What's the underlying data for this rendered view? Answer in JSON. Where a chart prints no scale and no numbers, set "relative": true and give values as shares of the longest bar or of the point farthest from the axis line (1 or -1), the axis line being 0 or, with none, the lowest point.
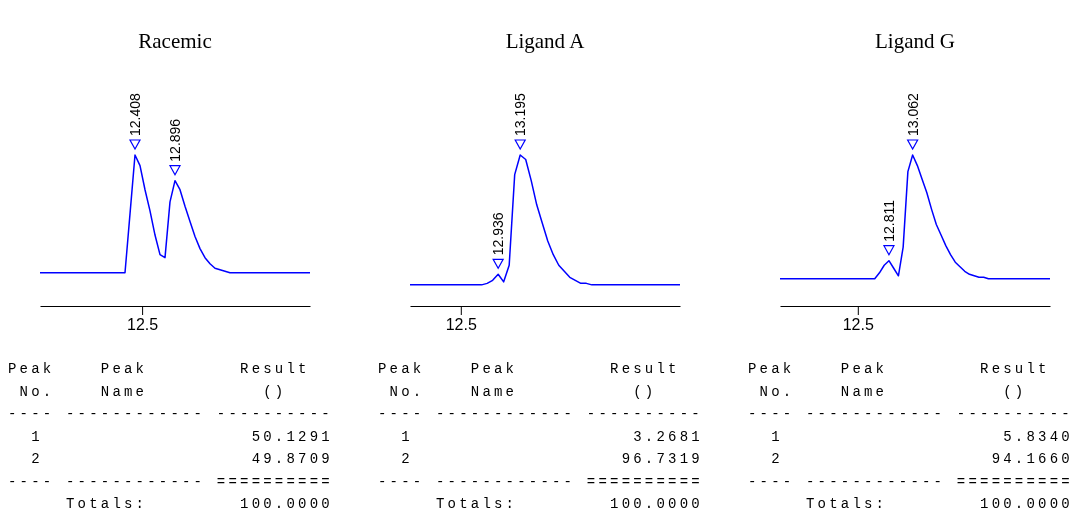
{
  "chart_data": [
    {
      "type": "line",
      "title": "Racemic",
      "relative": true,
      "categories": [
        null,
        null,
        null,
        null,
        null,
        null,
        null,
        null,
        null,
        null,
        null,
        null,
        null,
        null,
        null,
        null,
        null,
        null,
        null,
        null,
        null,
        null,
        null,
        null,
        null,
        null,
        null,
        null,
        null,
        null,
        null,
        null,
        null,
        null,
        null,
        null,
        null,
        null,
        null,
        null,
        null,
        null,
        null,
        null,
        null,
        null,
        null,
        null,
        null,
        null,
        null,
        null,
        null,
        null,
        null
      ],
      "series": [
        {
          "color": "#0000ff",
          "values": [
            0.22,
            0.22,
            0.22,
            0.22,
            0.22,
            0.22,
            0.22,
            0.22,
            0.22,
            0.22,
            0.22,
            0.22,
            0.22,
            0.22,
            0.22,
            0.22,
            0.22,
            0.22,
            0.61,
            1,
            0.93,
            0.77,
            0.63,
            0.47,
            0.34,
            0.32,
            0.69,
            0.83,
            0.77,
            0.66,
            0.56,
            0.46,
            0.38,
            0.32,
            0.28,
            0.25,
            0.24,
            0.23,
            0.22,
            0.22,
            0.22,
            0.22,
            0.22,
            0.22,
            0.22,
            0.22,
            0.22,
            0.22,
            0.22,
            0.22,
            0.22,
            0.22,
            0.22,
            0.22,
            0.22
          ]
        }
      ],
      "annotations": [
        {
          "text": "12.408",
          "y": 1
        },
        {
          "text": "12.896",
          "y": 0.83
        },
        "12.5",
        "Peak    Peak        Result",
        " No.    Name          ()",
        "---- ------------ ----------",
        "  1                  50.1291",
        "  2                  49.8709",
        "---- ------------ ==========",
        "     Totals:        100.0000"
      ]
    },
    {
      "type": "line",
      "title": "Ligand A",
      "relative": true,
      "categories": [
        null,
        null,
        null,
        null,
        null,
        null,
        null,
        null,
        null,
        null,
        null,
        null,
        null,
        null,
        null,
        null,
        null,
        null,
        null,
        null,
        null,
        null,
        null,
        null,
        null,
        null,
        null,
        null,
        null,
        null,
        null,
        null,
        null,
        null,
        null,
        null,
        null,
        null,
        null,
        null,
        null,
        null,
        null,
        null,
        null,
        null,
        null,
        null,
        null,
        null
      ],
      "series": [
        {
          "color": "#0000ff",
          "values": [
            0.14,
            0.14,
            0.14,
            0.14,
            0.14,
            0.14,
            0.14,
            0.14,
            0.14,
            0.14,
            0.14,
            0.14,
            0.14,
            0.14,
            0.15,
            0.17,
            0.21,
            0.16,
            0.27,
            0.87,
            1,
            0.97,
            0.83,
            0.67,
            0.55,
            0.43,
            0.34,
            0.27,
            0.23,
            0.19,
            0.17,
            0.15,
            0.15,
            0.14,
            0.14,
            0.14,
            0.14,
            0.14,
            0.14,
            0.14,
            0.14,
            0.14,
            0.14,
            0.14,
            0.14,
            0.14,
            0.14,
            0.14,
            0.14,
            0.14
          ]
        }
      ],
      "annotations": [
        {
          "text": "12.936",
          "y": 0.21
        },
        {
          "text": "13.195",
          "y": 1
        },
        "12.5",
        "Peak    Peak        Result",
        " No.    Name          ()",
        "---- ------------ ----------",
        "  1                   3.2681",
        "  2                  96.7319",
        "---- ------------ ==========",
        "     Totals:        100.0000"
      ]
    },
    {
      "type": "line",
      "title": "Ligand G",
      "relative": true,
      "categories": [
        null,
        null,
        null,
        null,
        null,
        null,
        null,
        null,
        null,
        null,
        null,
        null,
        null,
        null,
        null,
        null,
        null,
        null,
        null,
        null,
        null,
        null,
        null,
        null,
        null,
        null,
        null,
        null,
        null,
        null,
        null,
        null,
        null,
        null,
        null,
        null,
        null,
        null,
        null,
        null,
        null,
        null,
        null,
        null,
        null,
        null,
        null,
        null,
        null,
        null,
        null,
        null,
        null,
        null,
        null,
        null,
        null,
        null
      ],
      "series": [
        {
          "color": "#0000ff",
          "values": [
            0.18,
            0.18,
            0.18,
            0.18,
            0.18,
            0.18,
            0.18,
            0.18,
            0.18,
            0.18,
            0.18,
            0.18,
            0.18,
            0.18,
            0.18,
            0.18,
            0.18,
            0.18,
            0.18,
            0.18,
            0.18,
            0.22,
            0.27,
            0.3,
            0.25,
            0.2,
            0.39,
            0.89,
            1,
            0.93,
            0.84,
            0.75,
            0.64,
            0.54,
            0.47,
            0.4,
            0.34,
            0.29,
            0.26,
            0.23,
            0.21,
            0.2,
            0.19,
            0.19,
            0.18,
            0.18,
            0.18,
            0.18,
            0.18,
            0.18,
            0.18,
            0.18,
            0.18,
            0.18,
            0.18,
            0.18,
            0.18,
            0.18
          ]
        }
      ],
      "annotations": [
        {
          "text": "12.811",
          "y": 0.3
        },
        {
          "text": "13.062",
          "y": 1
        },
        "12.5",
        "Peak    Peak        Result",
        " No.    Name          ()",
        "---- ------------ ----------",
        "  1                   5.8340",
        "  2                  94.1660",
        "---- ------------ ==========",
        "     Totals:        100.0000"
      ]
    }
  ]
}
